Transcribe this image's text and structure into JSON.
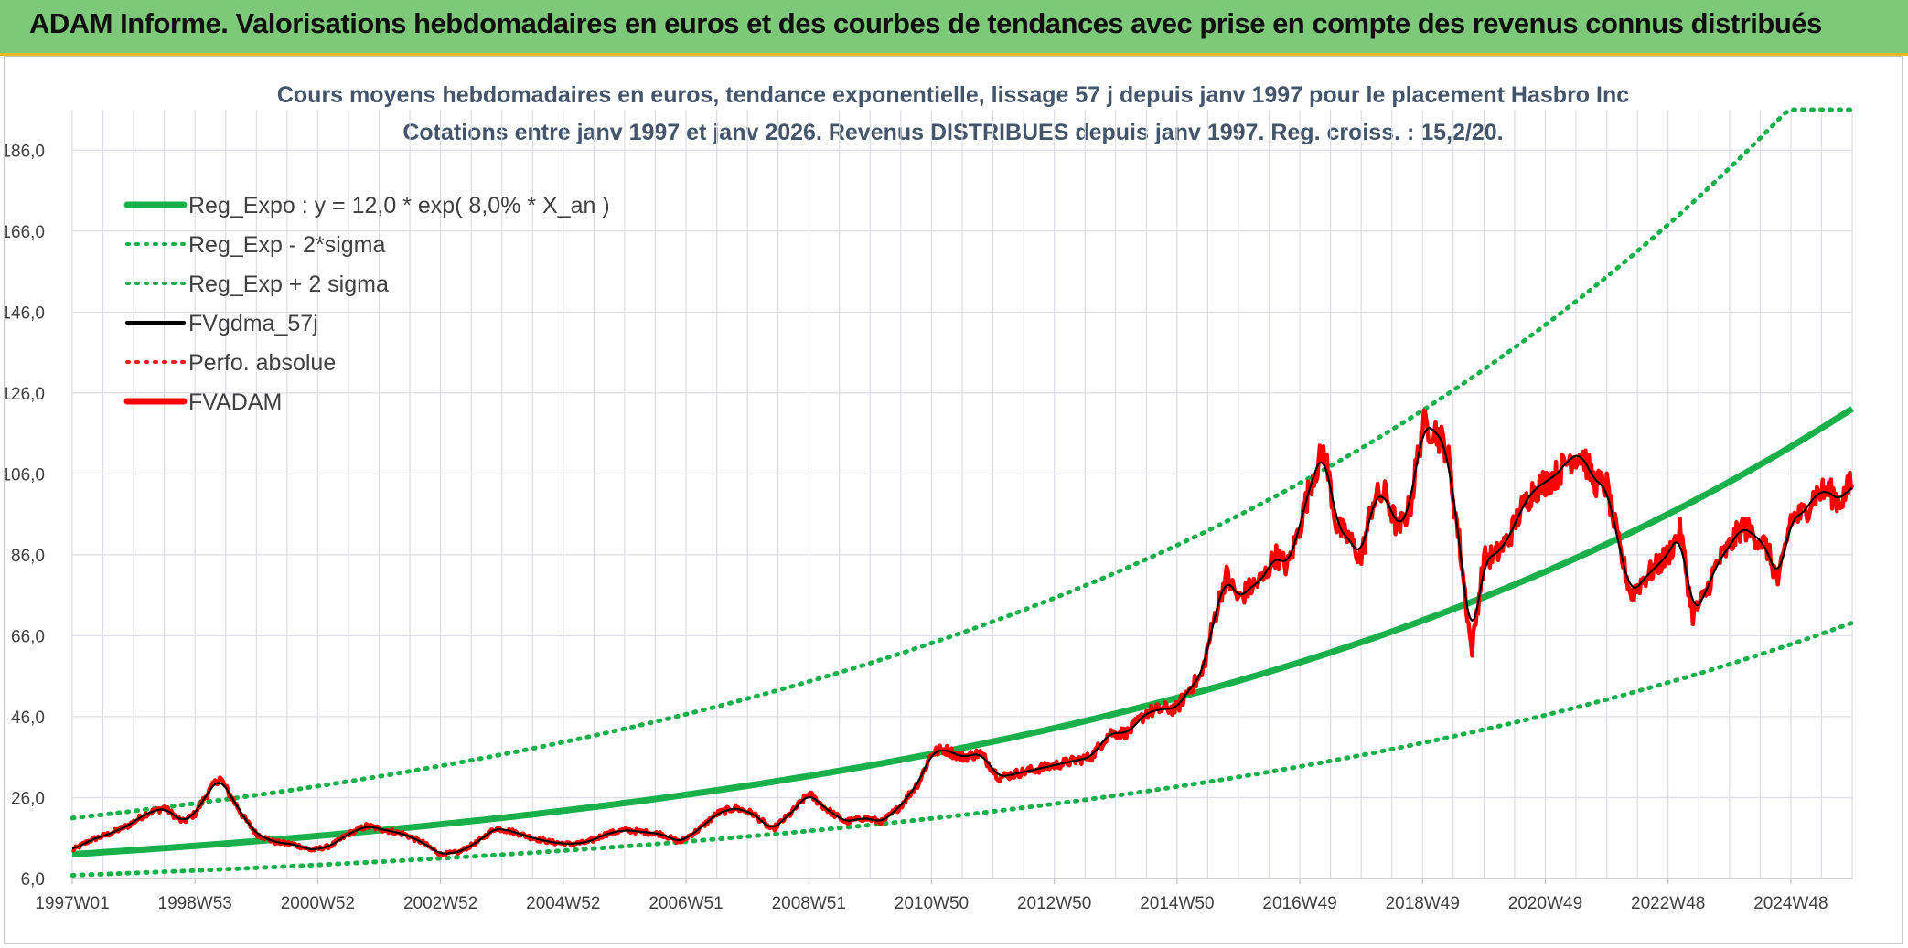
{
  "banner": {
    "title": "ADAM Informe. Valorisations hebdomadaires en euros et des courbes de tendances avec prise en compte des revenus connus distribués"
  },
  "chart_data": {
    "type": "line",
    "title": "Cours moyens hebdomadaires en euros, tendance exponentielle, lissage 57 j depuis janv 1997 pour le placement Hasbro Inc",
    "subtitle": "Cotations entre janv 1997 et janv 2026. Revenus DISTRIBUES depuis janv 1997. Reg. croiss. : 15,2/20.",
    "ylim": [
      6,
      196
    ],
    "yticks": [
      "6,0",
      "26,0",
      "46,0",
      "66,0",
      "86,0",
      "106,0",
      "126,0",
      "146,0",
      "166,0",
      "186,0"
    ],
    "yticks_values": [
      6,
      26,
      46,
      66,
      86,
      106,
      126,
      146,
      166,
      186
    ],
    "xlim": [
      1997.0,
      2026.0
    ],
    "xticks": [
      "1997W01",
      "1998W53",
      "2000W52",
      "2002W52",
      "2004W52",
      "2006W51",
      "2008W51",
      "2010W50",
      "2012W50",
      "2014W50",
      "2016W49",
      "2018W49",
      "2020W49",
      "2022W48",
      "2024W48"
    ],
    "xticks_values": [
      1997.0,
      1999.0,
      2001.0,
      2003.0,
      2005.0,
      2007.0,
      2009.0,
      2011.0,
      2013.0,
      2015.0,
      2017.0,
      2019.0,
      2021.0,
      2023.0,
      2025.0
    ],
    "legend": [
      {
        "label": "Reg_Expo : y = 12,0 * exp( 8,0% *  X_an )",
        "color": "#19b04b",
        "style": "solid-thick"
      },
      {
        "label": "Reg_Exp - 2*sigma",
        "color": "#19b04b",
        "style": "dotted"
      },
      {
        "label": "Reg_Exp + 2 sigma",
        "color": "#19b04b",
        "style": "dotted"
      },
      {
        "label": "FVgdma_57j",
        "color": "#000000",
        "style": "solid"
      },
      {
        "label": "Perfo. absolue",
        "color": "#e02020",
        "style": "dotted"
      },
      {
        "label": "FVADAM",
        "color": "#ff0000",
        "style": "solid-thick"
      }
    ],
    "legend_position": "top-left",
    "regression": {
      "a": 12.0,
      "rate": 0.08,
      "x0": 1997.0
    },
    "series": [
      {
        "name": "Reg_Expo",
        "color": "#19b04b",
        "x": [
          1997,
          1998,
          1999,
          2000,
          2001,
          2002,
          2003,
          2004,
          2005,
          2006,
          2007,
          2008,
          2009,
          2010,
          2011,
          2012,
          2013,
          2014,
          2015,
          2016,
          2017,
          2018,
          2019,
          2020,
          2021,
          2022,
          2023,
          2024,
          2025,
          2026
        ],
        "values": [
          12.0,
          13.0,
          14.1,
          15.3,
          16.6,
          18.0,
          19.5,
          21.1,
          22.8,
          24.7,
          26.8,
          29.0,
          31.4,
          34.0,
          36.9,
          39.9,
          43.3,
          46.9,
          50.8,
          55.0,
          59.6,
          64.5,
          69.9,
          75.7,
          82.0,
          88.8,
          96.2,
          104.2,
          112.9,
          122.3
        ]
      },
      {
        "name": "Reg_Exp - 2*sigma",
        "color": "#19b04b",
        "x": [
          1997,
          1998,
          1999,
          2000,
          2001,
          2002,
          2003,
          2004,
          2005,
          2006,
          2007,
          2008,
          2009,
          2010,
          2011,
          2012,
          2013,
          2014,
          2015,
          2016,
          2017,
          2018,
          2019,
          2020,
          2021,
          2022,
          2023,
          2024,
          2025,
          2026
        ],
        "values": [
          6.8,
          7.4,
          8.0,
          8.7,
          9.4,
          10.2,
          11.0,
          12.0,
          12.9,
          14.0,
          15.2,
          16.5,
          17.8,
          19.3,
          20.9,
          22.7,
          24.5,
          26.6,
          28.8,
          31.2,
          33.8,
          36.6,
          39.7,
          43.0,
          46.5,
          50.4,
          54.6,
          59.1,
          64.0,
          69.3
        ]
      },
      {
        "name": "Reg_Exp + 2 sigma",
        "color": "#19b04b",
        "x": [
          1997,
          1998,
          1999,
          2000,
          2001,
          2002,
          2003,
          2004,
          2005,
          2006,
          2007,
          2008,
          2009,
          2010,
          2011,
          2012,
          2013,
          2014,
          2015,
          2016,
          2017,
          2018,
          2019,
          2020,
          2021,
          2022,
          2023,
          2024,
          2025,
          2026
        ],
        "values": [
          21.1,
          22.9,
          24.8,
          26.9,
          29.1,
          31.5,
          34.1,
          37.0,
          40.1,
          43.4,
          47.0,
          50.9,
          55.1,
          59.7,
          64.7,
          70.1,
          75.9,
          82.2,
          89.1,
          96.5,
          104.5,
          113.2,
          122.6,
          132.8,
          143.8,
          155.8,
          168.8,
          182.8,
          196.0,
          196.0
        ]
      },
      {
        "name": "FVADAM",
        "color": "#ff0000",
        "x": [
          1997.0,
          1997.3,
          1997.6,
          1997.9,
          1998.2,
          1998.5,
          1998.8,
          1999.0,
          1999.2,
          1999.4,
          1999.6,
          1999.8,
          2000.0,
          2000.3,
          2000.6,
          2000.9,
          2001.2,
          2001.5,
          2001.8,
          2002.1,
          2002.4,
          2002.7,
          2003.0,
          2003.3,
          2003.6,
          2003.9,
          2004.2,
          2004.5,
          2004.8,
          2005.1,
          2005.4,
          2005.7,
          2006.0,
          2006.3,
          2006.6,
          2006.9,
          2007.2,
          2007.5,
          2007.8,
          2008.1,
          2008.4,
          2008.7,
          2009.0,
          2009.3,
          2009.6,
          2009.9,
          2010.2,
          2010.5,
          2010.8,
          2011.0,
          2011.2,
          2011.5,
          2011.8,
          2012.1,
          2012.4,
          2012.7,
          2013.0,
          2013.3,
          2013.6,
          2013.9,
          2014.2,
          2014.5,
          2014.8,
          2015.0,
          2015.2,
          2015.4,
          2015.6,
          2015.8,
          2016.0,
          2016.2,
          2016.4,
          2016.6,
          2016.8,
          2017.0,
          2017.2,
          2017.4,
          2017.6,
          2017.8,
          2018.0,
          2018.2,
          2018.4,
          2018.6,
          2018.8,
          2019.0,
          2019.2,
          2019.4,
          2019.6,
          2019.8,
          2020.0,
          2020.2,
          2020.4,
          2020.6,
          2020.8,
          2021.0,
          2021.2,
          2021.4,
          2021.6,
          2021.8,
          2022.0,
          2022.2,
          2022.4,
          2022.6,
          2022.8,
          2023.0,
          2023.2,
          2023.4,
          2023.6,
          2023.8,
          2024.0,
          2024.2,
          2024.4,
          2024.6,
          2024.8,
          2025.0,
          2025.2,
          2025.4,
          2025.6,
          2025.8,
          2026.0
        ],
        "values": [
          13.0,
          15.5,
          17.0,
          19.0,
          22.0,
          23.5,
          20.0,
          22.0,
          27.0,
          31.0,
          26.0,
          21.0,
          17.0,
          15.0,
          14.5,
          13.0,
          14.0,
          17.0,
          19.0,
          18.0,
          17.0,
          15.0,
          12.0,
          12.5,
          15.0,
          18.5,
          17.5,
          16.0,
          15.0,
          14.5,
          15.0,
          17.0,
          18.0,
          17.5,
          17.0,
          15.0,
          18.0,
          22.0,
          23.5,
          22.0,
          18.0,
          22.0,
          27.0,
          23.0,
          20.0,
          21.0,
          20.0,
          24.0,
          30.0,
          37.0,
          38.0,
          36.0,
          37.0,
          31.0,
          32.0,
          33.0,
          34.0,
          35.0,
          36.0,
          42.0,
          42.0,
          47.0,
          48.0,
          48.0,
          53.0,
          56.0,
          70.0,
          81.0,
          75.0,
          78.0,
          80.0,
          86.0,
          83.0,
          93.0,
          105.0,
          112.0,
          93.0,
          90.0,
          85.0,
          100.0,
          101.0,
          92.0,
          98.0,
          118.0,
          117.0,
          112.0,
          89.0,
          62.0,
          85.0,
          86.0,
          90.0,
          97.0,
          102.0,
          104.0,
          106.0,
          110.0,
          111.0,
          104.0,
          103.0,
          88.0,
          76.0,
          80.0,
          83.0,
          86.0,
          92.0,
          71.0,
          76.0,
          84.0,
          88.0,
          93.0,
          91.0,
          88.0,
          79.0,
          95.0,
          96.0,
          101.0,
          102.0,
          99.0,
          104.0
        ]
      }
    ]
  }
}
